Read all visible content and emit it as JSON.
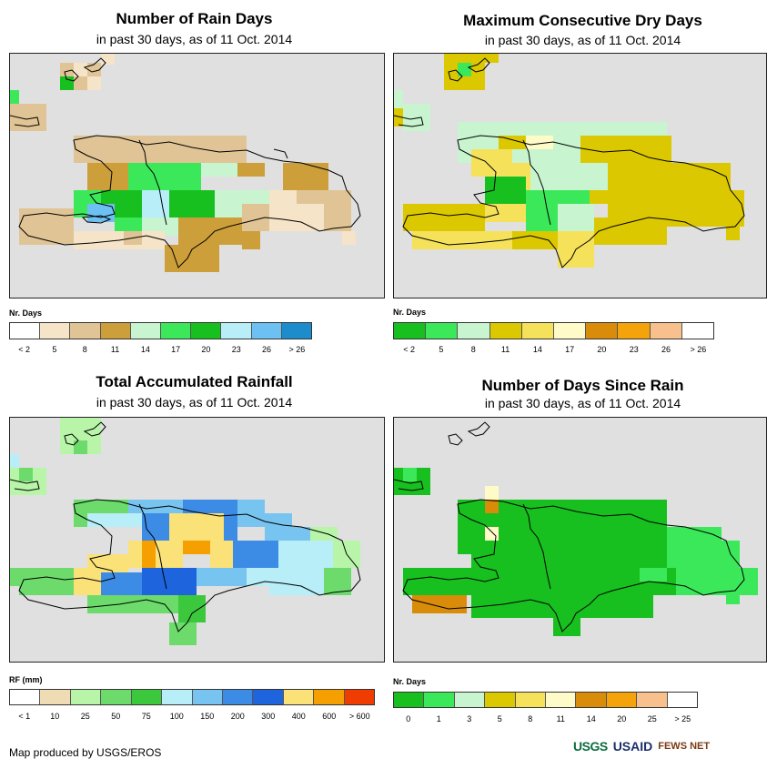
{
  "panels": [
    {
      "title": "Number of Rain Days",
      "subtitle": "in past 30 days, as of 11 Oct. 2014",
      "legend_title": "Nr. Days",
      "legend_colors": [
        "#ffffff",
        "#f5e4c8",
        "#e0c496",
        "#cc9f3a",
        "#c8f5d0",
        "#3be85a",
        "#17bf1f",
        "#b8eef7",
        "#6cc0f2",
        "#1d8ccc"
      ],
      "legend_labels": [
        "< 2",
        "5",
        "8",
        "11",
        "14",
        "17",
        "20",
        "23",
        "26",
        "> 26"
      ],
      "map_icon": "hispaniola-rain-days-map"
    },
    {
      "title": "Maximum Consecutive Dry Days",
      "subtitle": "in past 30 days, as of 11 Oct. 2014",
      "legend_title": "Nr. Days",
      "legend_colors": [
        "#17bf1f",
        "#3be85a",
        "#c8f5d0",
        "#dcc800",
        "#f5e25a",
        "#fffbc8",
        "#d98c0a",
        "#f5a30a",
        "#f7c08c",
        "#ffffff"
      ],
      "legend_labels": [
        "< 2",
        "5",
        "8",
        "11",
        "14",
        "17",
        "20",
        "23",
        "26",
        "> 26"
      ],
      "map_icon": "hispaniola-dry-days-map"
    },
    {
      "title": "Total Accumulated Rainfall",
      "subtitle": "in past 30 days, as of 11 Oct. 2014",
      "legend_title": "RF (mm)",
      "legend_colors": [
        "#ffffff",
        "#f0dcb4",
        "#b8f5a8",
        "#6cdb6c",
        "#3cc83c",
        "#b8eef7",
        "#78c4f0",
        "#3c8ce6",
        "#1e64dc",
        "#fae178",
        "#f5a000",
        "#f03c00"
      ],
      "legend_labels": [
        "< 1",
        "10",
        "25",
        "50",
        "75",
        "100",
        "150",
        "200",
        "300",
        "400",
        "600",
        "> 600"
      ],
      "map_icon": "hispaniola-rainfall-map"
    },
    {
      "title": "Number of Days Since Rain",
      "subtitle": "in past 30 days, as of 11 Oct. 2014",
      "legend_title": "Nr. Days",
      "legend_colors": [
        "#17bf1f",
        "#3be85a",
        "#c8f5d0",
        "#dcc800",
        "#f5e25a",
        "#fffbc8",
        "#d98c0a",
        "#f5a30a",
        "#f7c08c",
        "#ffffff"
      ],
      "legend_labels": [
        "0",
        "1",
        "3",
        "5",
        "8",
        "11",
        "14",
        "20",
        "25",
        "> 25"
      ],
      "map_icon": "hispaniola-days-since-rain-map"
    }
  ],
  "footer": "Map produced by USGS/EROS",
  "logos": {
    "usgs": "USGS",
    "usaid": "USAID",
    "fews": "FEWS NET"
  }
}
